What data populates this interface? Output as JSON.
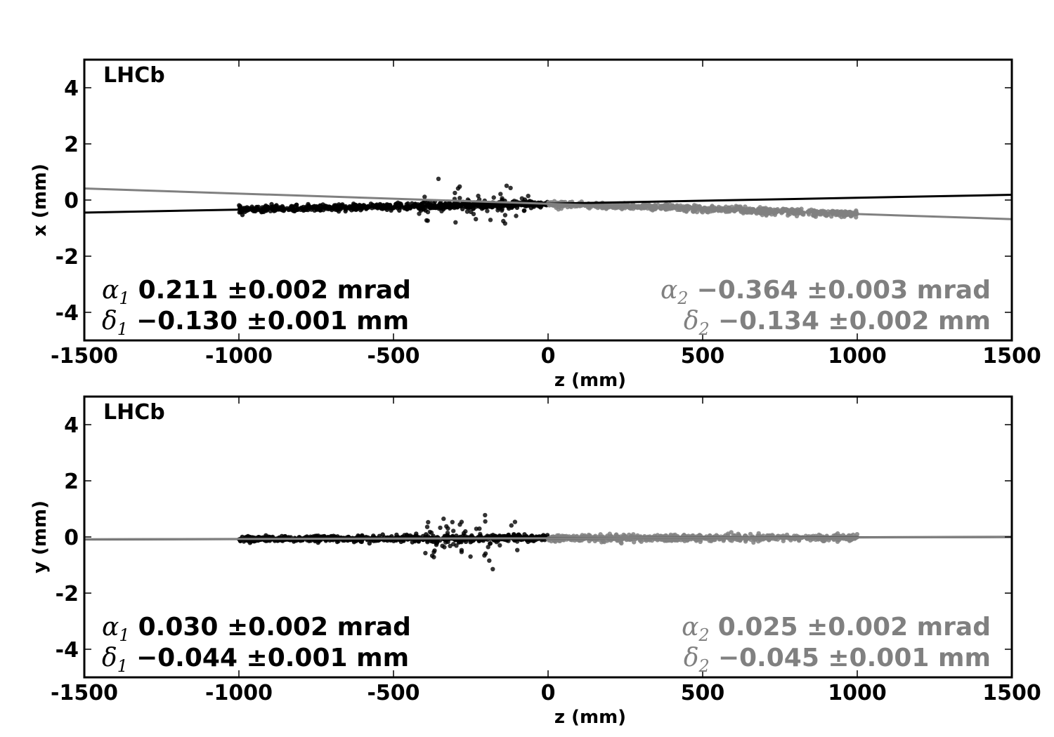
{
  "colors": {
    "series1": "#000000",
    "series2": "#808080"
  },
  "chart_data": [
    {
      "type": "scatter",
      "tag": "LHCb",
      "xlabel": "z (mm)",
      "ylabel": "x (mm)",
      "xlim": [
        -1500,
        1500
      ],
      "ylim": [
        -5,
        5
      ],
      "xticks": [
        -1500,
        -1000,
        -500,
        0,
        500,
        1000,
        1500
      ],
      "xtick_labels": [
        "-1500",
        "-1000",
        "-500",
        "0",
        "500",
        "1000",
        "1500"
      ],
      "yticks": [
        -4,
        -2,
        0,
        2,
        4
      ],
      "ytick_labels": [
        "-4",
        "-2",
        "0",
        "2",
        "4"
      ],
      "series": [
        {
          "color": "#000000",
          "z_range": [
            -1000,
            0
          ],
          "fit": {
            "slope_mrad": 0.211,
            "offset_mm": -0.13
          },
          "lines": [
            {
              "sym": "α",
              "sub": "1",
              "text": "0.211 ±0.002 mrad"
            },
            {
              "sym": "δ",
              "sub": "1",
              "text": "−0.130 ±0.001 mm"
            }
          ],
          "cluster": {
            "z_range": [
              -420,
              -60
            ],
            "y_center": -0.2,
            "y_spread": 0.55
          }
        },
        {
          "color": "#808080",
          "z_range": [
            0,
            1000
          ],
          "fit": {
            "slope_mrad": -0.364,
            "offset_mm": -0.134
          },
          "lines": [
            {
              "sym": "α",
              "sub": "2",
              "text": "−0.364 ±0.003 mrad"
            },
            {
              "sym": "δ",
              "sub": "2",
              "text": "−0.134 ±0.002 mm"
            }
          ]
        }
      ]
    },
    {
      "type": "scatter",
      "tag": "LHCb",
      "xlabel": "z (mm)",
      "ylabel": "y (mm)",
      "xlim": [
        -1500,
        1500
      ],
      "ylim": [
        -5,
        5
      ],
      "xticks": [
        -1500,
        -1000,
        -500,
        0,
        500,
        1000,
        1500
      ],
      "xtick_labels": [
        "-1500",
        "-1000",
        "-500",
        "0",
        "500",
        "1000",
        "1500"
      ],
      "yticks": [
        -4,
        -2,
        0,
        2,
        4
      ],
      "ytick_labels": [
        "-4",
        "-2",
        "0",
        "2",
        "4"
      ],
      "series": [
        {
          "color": "#000000",
          "z_range": [
            -1000,
            0
          ],
          "fit": {
            "slope_mrad": 0.03,
            "offset_mm": -0.044
          },
          "lines": [
            {
              "sym": "α",
              "sub": "1",
              "text": "0.030 ±0.002 mrad"
            },
            {
              "sym": "δ",
              "sub": "1",
              "text": "−0.044 ±0.001 mm"
            }
          ],
          "cluster": {
            "z_range": [
              -400,
              -80
            ],
            "y_center": -0.05,
            "y_spread": 0.6
          }
        },
        {
          "color": "#808080",
          "z_range": [
            0,
            1000
          ],
          "fit": {
            "slope_mrad": 0.025,
            "offset_mm": -0.045
          },
          "lines": [
            {
              "sym": "α",
              "sub": "2",
              "text": "0.025 ±0.002 mrad"
            },
            {
              "sym": "δ",
              "sub": "2",
              "text": "−0.045 ±0.001 mm"
            }
          ]
        }
      ]
    }
  ]
}
